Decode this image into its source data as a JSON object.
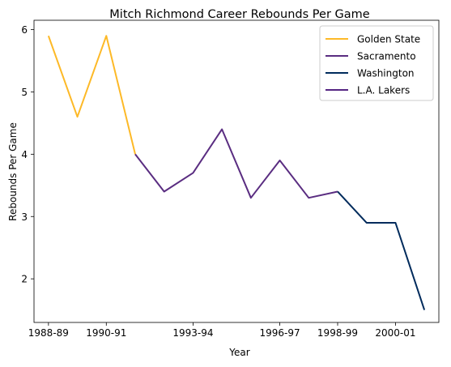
{
  "chart_data": {
    "type": "line",
    "title": "Mitch Richmond Career Rebounds Per Game",
    "xlabel": "Year",
    "ylabel": "Rebounds Per Game",
    "x_categories": [
      "1988-89",
      "1989-90",
      "1990-91",
      "1991-92",
      "1992-93",
      "1993-94",
      "1994-95",
      "1995-96",
      "1996-97",
      "1997-98",
      "1998-99",
      "1999-00",
      "2000-01",
      "2001-02"
    ],
    "x_tick_labels": [
      "1988-89",
      "1990-91",
      "1993-94",
      "1996-97",
      "1998-99",
      "2000-01"
    ],
    "ylim": [
      1.3,
      6.15
    ],
    "y_ticks": [
      2,
      3,
      4,
      5,
      6
    ],
    "grid": false,
    "legend_position": "top-right",
    "series": [
      {
        "name": "Golden State",
        "color": "#FDB927",
        "x": [
          "1988-89",
          "1989-90",
          "1990-91",
          "1991-92"
        ],
        "values": [
          5.9,
          4.6,
          5.9,
          4.0
        ]
      },
      {
        "name": "Sacramento",
        "color": "#5A2D81",
        "x": [
          "1991-92",
          "1992-93",
          "1993-94",
          "1994-95",
          "1995-96",
          "1996-97",
          "1997-98",
          "1998-99"
        ],
        "values": [
          4.0,
          3.4,
          3.7,
          4.4,
          3.3,
          3.9,
          3.3,
          3.4
        ]
      },
      {
        "name": "Washington",
        "color": "#002B5C",
        "x": [
          "1998-99",
          "1999-00",
          "2000-01",
          "2001-02"
        ],
        "values": [
          3.4,
          2.9,
          2.9,
          1.5
        ]
      },
      {
        "name": "L.A. Lakers",
        "color": "#552583",
        "x": [],
        "values": []
      }
    ]
  }
}
